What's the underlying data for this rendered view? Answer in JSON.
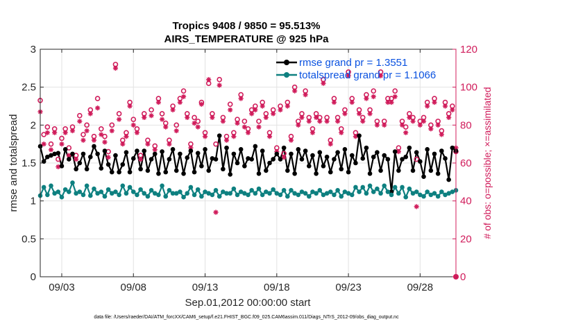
{
  "chart_data": {
    "type": "line",
    "title": "Tropics 9408 / 9850 = 95.513%",
    "subtitle": "AIRS_TEMPERATURE @ 925 hPa",
    "xlabel": "Sep.01,2012 00:00:00 start",
    "ylabel": "rmse and totalspread",
    "y2label": "# of obs: o=possible; ×=assimilated",
    "footnote": "data file: /Users/raeder/DAI/ATM_forcXX/CAM6_setup/f.e21.FHIST_BGC.f09_025.CAM6assim.011/Diags_NTrS_2012-09/obs_diag_output.nc",
    "xlim": [
      1.5,
      30.5
    ],
    "ylim": [
      0,
      3
    ],
    "y2lim": [
      0,
      120
    ],
    "x_ticks": [
      3,
      8,
      13,
      18,
      23,
      28
    ],
    "x_tick_labels": [
      "09/03",
      "09/08",
      "09/13",
      "09/18",
      "09/23",
      "09/28"
    ],
    "y_ticks": [
      0,
      0.5,
      1,
      1.5,
      2,
      2.5,
      3
    ],
    "y_tick_labels": [
      "0",
      "0.5",
      "1",
      "1.5",
      "2",
      "2.5",
      "3"
    ],
    "y2_ticks": [
      0,
      20,
      40,
      60,
      80,
      100,
      120
    ],
    "y2_tick_labels": [
      "0",
      "20",
      "40",
      "60",
      "80",
      "100",
      "120"
    ],
    "grid": true,
    "legend_position": "top-right",
    "series": [
      {
        "name": "rmse grand pr = 1.3551",
        "color": "#000000",
        "marker": "circle-filled",
        "x": [
          1.5,
          1.75,
          2.0,
          2.25,
          2.5,
          2.75,
          3.0,
          3.25,
          3.5,
          3.75,
          4.0,
          4.25,
          4.5,
          4.75,
          5.0,
          5.25,
          5.5,
          5.75,
          6.0,
          6.25,
          6.5,
          6.75,
          7.0,
          7.25,
          7.5,
          7.75,
          8.0,
          8.25,
          8.5,
          8.75,
          9.0,
          9.25,
          9.5,
          9.75,
          10.0,
          10.25,
          10.5,
          10.75,
          11.0,
          11.25,
          11.5,
          11.75,
          12.0,
          12.25,
          12.5,
          12.75,
          13.0,
          13.25,
          13.5,
          13.75,
          14.0,
          14.25,
          14.5,
          14.75,
          15.0,
          15.25,
          15.5,
          15.75,
          16.0,
          16.25,
          16.5,
          16.75,
          17.0,
          17.25,
          17.5,
          17.75,
          18.0,
          18.25,
          18.5,
          18.75,
          19.0,
          19.25,
          19.5,
          19.75,
          20.0,
          20.25,
          20.5,
          20.75,
          21.0,
          21.25,
          21.5,
          21.75,
          22.0,
          22.25,
          22.5,
          22.75,
          23.0,
          23.25,
          23.5,
          23.75,
          24.0,
          24.25,
          24.5,
          24.75,
          25.0,
          25.25,
          25.5,
          25.75,
          26.0,
          26.25,
          26.5,
          26.75,
          27.0,
          27.25,
          27.5,
          27.75,
          28.0,
          28.25,
          28.5,
          28.75,
          29.0,
          29.25,
          29.5,
          29.75,
          30.0,
          30.25,
          30.5
        ],
        "values": [
          1.72,
          1.52,
          1.58,
          1.6,
          1.62,
          1.63,
          1.46,
          1.68,
          1.55,
          1.62,
          1.42,
          1.5,
          1.62,
          1.42,
          1.58,
          1.72,
          1.62,
          1.43,
          1.66,
          1.48,
          1.38,
          1.6,
          1.38,
          1.48,
          1.64,
          1.38,
          1.56,
          1.66,
          1.42,
          1.66,
          1.4,
          1.55,
          1.62,
          1.36,
          1.65,
          1.38,
          1.55,
          1.68,
          1.4,
          1.62,
          1.36,
          1.57,
          1.66,
          1.38,
          1.63,
          1.46,
          1.68,
          1.4,
          1.56,
          1.55,
          1.86,
          1.42,
          1.7,
          1.35,
          1.62,
          1.5,
          1.68,
          1.46,
          1.56,
          1.55,
          1.72,
          1.36,
          1.66,
          1.4,
          1.5,
          1.55,
          1.62,
          1.55,
          1.7,
          1.4,
          1.62,
          1.36,
          1.68,
          1.55,
          1.66,
          1.46,
          1.6,
          1.36,
          1.64,
          1.46,
          1.58,
          1.38,
          1.55,
          1.64,
          1.42,
          1.68,
          1.38,
          1.6,
          1.5,
          1.86,
          1.56,
          1.7,
          1.36,
          1.58,
          1.64,
          1.4,
          1.6,
          1.55,
          1.12,
          1.65,
          1.4,
          1.55,
          1.58,
          1.7,
          1.4,
          1.64,
          1.52,
          1.32,
          1.68,
          1.4,
          1.62,
          1.36,
          1.66,
          1.56,
          1.28,
          1.7,
          1.66
        ]
      },
      {
        "name": "totalspread grand pr = 1.1066",
        "color": "#0e8080",
        "marker": "circle-filled",
        "x": [
          1.5,
          1.75,
          2.0,
          2.25,
          2.5,
          2.75,
          3.0,
          3.25,
          3.5,
          3.75,
          4.0,
          4.25,
          4.5,
          4.75,
          5.0,
          5.25,
          5.5,
          5.75,
          6.0,
          6.25,
          6.5,
          6.75,
          7.0,
          7.25,
          7.5,
          7.75,
          8.0,
          8.25,
          8.5,
          8.75,
          9.0,
          9.25,
          9.5,
          9.75,
          10.0,
          10.25,
          10.5,
          10.75,
          11.0,
          11.25,
          11.5,
          11.75,
          12.0,
          12.25,
          12.5,
          12.75,
          13.0,
          13.25,
          13.5,
          13.75,
          14.0,
          14.25,
          14.5,
          14.75,
          15.0,
          15.25,
          15.5,
          15.75,
          16.0,
          16.25,
          16.5,
          16.75,
          17.0,
          17.25,
          17.5,
          17.75,
          18.0,
          18.25,
          18.5,
          18.75,
          19.0,
          19.25,
          19.5,
          19.75,
          20.0,
          20.25,
          20.5,
          20.75,
          21.0,
          21.25,
          21.5,
          21.75,
          22.0,
          22.25,
          22.5,
          22.75,
          23.0,
          23.25,
          23.5,
          23.75,
          24.0,
          24.25,
          24.5,
          24.75,
          25.0,
          25.25,
          25.5,
          25.75,
          26.0,
          26.25,
          26.5,
          26.75,
          27.0,
          27.25,
          27.5,
          27.75,
          28.0,
          28.25,
          28.5,
          28.75,
          29.0,
          29.25,
          29.5,
          29.75,
          30.0,
          30.25,
          30.5
        ],
        "values": [
          1.07,
          1.18,
          1.08,
          1.2,
          1.1,
          1.12,
          1.05,
          1.15,
          1.12,
          1.24,
          1.1,
          1.12,
          1.08,
          1.2,
          1.07,
          1.16,
          1.1,
          1.12,
          1.06,
          1.15,
          1.1,
          1.12,
          1.08,
          1.2,
          1.1,
          1.18,
          1.12,
          1.08,
          1.15,
          1.1,
          1.06,
          1.14,
          1.1,
          1.08,
          1.2,
          1.06,
          1.14,
          1.1,
          1.1,
          1.12,
          1.05,
          1.1,
          1.18,
          1.08,
          1.15,
          1.06,
          1.12,
          1.1,
          1.08,
          1.14,
          1.06,
          1.12,
          1.1,
          1.1,
          1.16,
          1.08,
          1.12,
          1.1,
          1.08,
          1.14,
          1.1,
          1.16,
          1.08,
          1.12,
          1.1,
          1.15,
          1.1,
          1.08,
          1.14,
          1.06,
          1.14,
          1.1,
          1.08,
          1.12,
          1.1,
          1.06,
          1.12,
          1.1,
          1.14,
          1.08,
          1.1,
          1.12,
          1.08,
          1.14,
          1.06,
          1.12,
          1.1,
          1.08,
          1.18,
          1.12,
          1.18,
          1.1,
          1.2,
          1.12,
          1.16,
          1.1,
          1.2,
          1.12,
          1.08,
          1.18,
          1.1,
          1.18,
          1.05,
          1.16,
          1.1,
          1.12,
          1.08,
          1.06,
          1.12,
          1.08,
          1.1,
          1.06,
          1.12,
          1.08,
          1.1,
          1.12,
          1.14
        ]
      },
      {
        "name": "# of obs possible",
        "axis": "right",
        "color": "#d01c5b",
        "marker": "circle-open",
        "x": [
          1.5,
          1.75,
          2.0,
          2.25,
          2.5,
          2.75,
          3.0,
          3.25,
          3.5,
          3.75,
          4.0,
          4.25,
          4.5,
          4.75,
          5.0,
          5.25,
          5.5,
          5.75,
          6.0,
          6.25,
          6.5,
          6.75,
          7.0,
          7.25,
          7.5,
          7.75,
          8.0,
          8.25,
          8.5,
          8.75,
          9.0,
          9.25,
          9.5,
          9.75,
          10.0,
          10.25,
          10.5,
          10.75,
          11.0,
          11.25,
          11.5,
          11.75,
          12.0,
          12.25,
          12.5,
          12.75,
          13.0,
          13.25,
          13.5,
          13.75,
          14.0,
          14.25,
          14.5,
          14.75,
          15.0,
          15.25,
          15.5,
          15.75,
          16.0,
          16.25,
          16.5,
          16.75,
          17.0,
          17.25,
          17.5,
          17.75,
          18.0,
          18.25,
          18.5,
          18.75,
          19.0,
          19.25,
          19.5,
          19.75,
          20.0,
          20.25,
          20.5,
          20.75,
          21.0,
          21.25,
          21.5,
          21.75,
          22.0,
          22.25,
          22.5,
          22.75,
          23.0,
          23.25,
          23.5,
          23.75,
          24.0,
          24.25,
          24.5,
          24.75,
          25.0,
          25.25,
          25.5,
          25.75,
          26.0,
          26.25,
          26.5,
          26.75,
          27.0,
          27.25,
          27.5,
          27.75,
          28.0,
          28.25,
          28.5,
          28.75,
          29.0,
          29.25,
          29.5,
          29.75,
          30.0,
          30.25,
          30.5
        ],
        "values": [
          93,
          75,
          79,
          70,
          78,
          62,
          73,
          78,
          68,
          79,
          64,
          85,
          75,
          80,
          88,
          74,
          94,
          78,
          74,
          66,
          80,
          112,
          86,
          72,
          76,
          92,
          83,
          78,
          64,
          86,
          72,
          88,
          69,
          94,
          86,
          81,
          72,
          90,
          80,
          94,
          98,
          86,
          70,
          84,
          82,
          92,
          76,
          102,
          86,
          70,
          104,
          84,
          74,
          91,
          76,
          83,
          96,
          82,
          78,
          88,
          90,
          82,
          92,
          86,
          76,
          88,
          68,
          90,
          65,
          92,
          74,
          100,
          82,
          86,
          98,
          84,
          78,
          86,
          84,
          104,
          84,
          72,
          94,
          84,
          78,
          88,
          108,
          94,
          76,
          88,
          84,
          96,
          88,
          98,
          82,
          108,
          82,
          94,
          94,
          98,
          68,
          82,
          79,
          86,
          84,
          62,
          82,
          84,
          92,
          80,
          94,
          82,
          77,
          92,
          86,
          90,
          66
        ]
      },
      {
        "name": "# of obs assimilated",
        "axis": "right",
        "color": "#d01c5b",
        "marker": "asterisk",
        "x": [
          1.5,
          1.75,
          2.0,
          2.25,
          2.5,
          2.75,
          3.0,
          3.25,
          3.5,
          3.75,
          4.0,
          4.25,
          4.5,
          4.75,
          5.0,
          5.25,
          5.5,
          5.75,
          6.0,
          6.25,
          6.5,
          6.75,
          7.0,
          7.25,
          7.5,
          7.75,
          8.0,
          8.25,
          8.5,
          8.75,
          9.0,
          9.25,
          9.5,
          9.75,
          10.0,
          10.25,
          10.5,
          10.75,
          11.0,
          11.25,
          11.5,
          11.75,
          12.0,
          12.25,
          12.5,
          12.75,
          13.0,
          13.25,
          13.5,
          13.75,
          14.0,
          14.25,
          14.5,
          14.75,
          15.0,
          15.25,
          15.5,
          15.75,
          16.0,
          16.25,
          16.5,
          16.75,
          17.0,
          17.25,
          17.5,
          17.75,
          18.0,
          18.25,
          18.5,
          18.75,
          19.0,
          19.25,
          19.5,
          19.75,
          20.0,
          20.25,
          20.5,
          20.75,
          21.0,
          21.25,
          21.5,
          21.75,
          22.0,
          22.25,
          22.5,
          22.75,
          23.0,
          23.25,
          23.5,
          23.75,
          24.0,
          24.25,
          24.5,
          24.75,
          25.0,
          25.25,
          25.5,
          25.75,
          26.0,
          26.25,
          26.5,
          26.75,
          27.0,
          27.25,
          27.5,
          27.75,
          28.0,
          28.25,
          28.5,
          28.75,
          29.0,
          29.25,
          29.5,
          29.75,
          30.0,
          30.25,
          30.5
        ],
        "values": [
          87,
          70,
          76,
          67,
          76,
          58,
          70,
          76,
          64,
          77,
          62,
          82,
          72,
          77,
          86,
          72,
          89,
          75,
          71,
          63,
          77,
          110,
          83,
          70,
          74,
          90,
          80,
          76,
          62,
          84,
          70,
          85,
          67,
          92,
          83,
          79,
          70,
          88,
          77,
          92,
          95,
          84,
          68,
          81,
          79,
          91,
          74,
          104,
          84,
          34,
          101,
          82,
          72,
          88,
          74,
          81,
          94,
          79,
          76,
          86,
          88,
          79,
          90,
          84,
          74,
          86,
          66,
          88,
          63,
          90,
          72,
          98,
          80,
          84,
          96,
          82,
          76,
          84,
          82,
          102,
          82,
          70,
          92,
          82,
          76,
          86,
          106,
          92,
          74,
          86,
          82,
          94,
          86,
          95,
          80,
          106,
          80,
          92,
          92,
          95,
          66,
          80,
          76,
          84,
          82,
          37,
          80,
          82,
          90,
          78,
          92,
          80,
          75,
          90,
          84,
          88,
          68
        ]
      }
    ],
    "special_point": {
      "x": 30.5,
      "y2": 0,
      "color": "#d01c5b"
    }
  }
}
